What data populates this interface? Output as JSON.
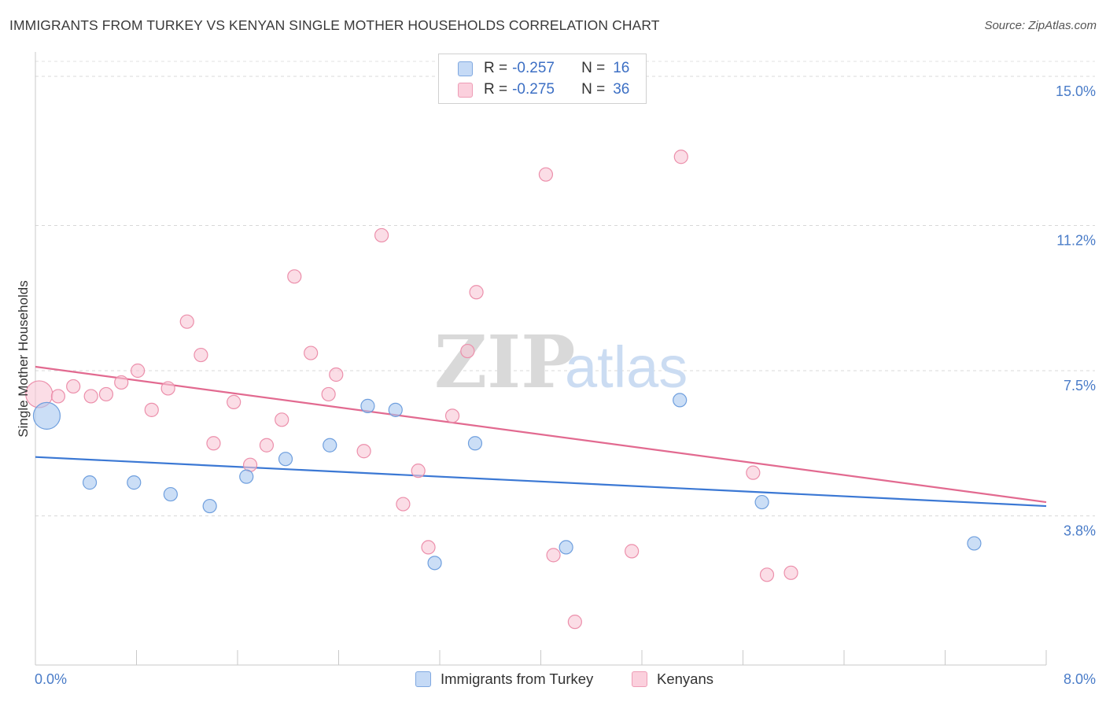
{
  "header": {
    "title": "IMMIGRANTS FROM TURKEY VS KENYAN SINGLE MOTHER HOUSEHOLDS CORRELATION CHART",
    "source": "Source: ZipAtlas.com"
  },
  "watermark": {
    "zip": "ZIP",
    "atlas": "atlas"
  },
  "legend_top": {
    "rows": [
      {
        "r_label": "R =",
        "r_value": "-0.257",
        "n_label": "N =",
        "n_value": "16",
        "color": "#a9c8f0"
      },
      {
        "r_label": "R =",
        "r_value": "-0.275",
        "n_label": "N =",
        "n_value": "36",
        "color": "#f7b8cb"
      }
    ]
  },
  "legend_bottom": {
    "turkey": "Immigrants from Turkey",
    "kenyans": "Kenyans"
  },
  "chart_data": {
    "type": "scatter",
    "title": "IMMIGRANTS FROM TURKEY VS KENYAN SINGLE MOTHER HOUSEHOLDS CORRELATION CHART",
    "xlabel": "",
    "ylabel": "Single Mother Households",
    "xlim": [
      0.0,
      8.0
    ],
    "ylim": [
      0.0,
      15.0
    ],
    "x_tick_labels": [
      "0.0%",
      "8.0%"
    ],
    "y_ticks": [
      3.8,
      7.5,
      11.2,
      15.0
    ],
    "y_tick_labels": [
      "3.8%",
      "7.5%",
      "11.2%",
      "15.0%"
    ],
    "grid": true,
    "series": [
      {
        "name": "Immigrants from Turkey",
        "color": "#a9c8f0",
        "stroke": "#6f9fde",
        "line_color": "#3b78d4",
        "trend": {
          "x": [
            0.0,
            8.0
          ],
          "y": [
            5.3,
            4.05
          ]
        },
        "points": [
          {
            "x": 0.09,
            "y": 6.35,
            "big": true
          },
          {
            "x": 0.43,
            "y": 4.65
          },
          {
            "x": 0.78,
            "y": 4.65
          },
          {
            "x": 1.07,
            "y": 4.35
          },
          {
            "x": 1.38,
            "y": 4.05
          },
          {
            "x": 1.67,
            "y": 4.8
          },
          {
            "x": 1.98,
            "y": 5.25
          },
          {
            "x": 2.33,
            "y": 5.6
          },
          {
            "x": 2.63,
            "y": 6.6
          },
          {
            "x": 2.85,
            "y": 6.5
          },
          {
            "x": 3.16,
            "y": 2.6
          },
          {
            "x": 3.48,
            "y": 5.65
          },
          {
            "x": 4.2,
            "y": 3.0
          },
          {
            "x": 5.1,
            "y": 6.75
          },
          {
            "x": 5.75,
            "y": 4.15
          },
          {
            "x": 7.43,
            "y": 3.1
          }
        ]
      },
      {
        "name": "Kenyans",
        "color": "#f9c6d5",
        "stroke": "#ec8fab",
        "line_color": "#e26a90",
        "trend": {
          "x": [
            0.0,
            8.0
          ],
          "y": [
            7.6,
            4.15
          ]
        },
        "points": [
          {
            "x": 0.03,
            "y": 6.9,
            "big": true
          },
          {
            "x": 0.18,
            "y": 6.85
          },
          {
            "x": 0.3,
            "y": 7.1
          },
          {
            "x": 0.44,
            "y": 6.85
          },
          {
            "x": 0.56,
            "y": 6.9
          },
          {
            "x": 0.68,
            "y": 7.2
          },
          {
            "x": 0.81,
            "y": 7.5
          },
          {
            "x": 0.92,
            "y": 6.5
          },
          {
            "x": 1.05,
            "y": 7.05
          },
          {
            "x": 1.2,
            "y": 8.75
          },
          {
            "x": 1.31,
            "y": 7.9
          },
          {
            "x": 1.41,
            "y": 5.65
          },
          {
            "x": 1.57,
            "y": 6.7
          },
          {
            "x": 1.7,
            "y": 5.1
          },
          {
            "x": 1.83,
            "y": 5.6
          },
          {
            "x": 1.95,
            "y": 6.25
          },
          {
            "x": 2.05,
            "y": 9.9
          },
          {
            "x": 2.18,
            "y": 7.95
          },
          {
            "x": 2.32,
            "y": 6.9
          },
          {
            "x": 2.38,
            "y": 7.4
          },
          {
            "x": 2.6,
            "y": 5.45
          },
          {
            "x": 2.74,
            "y": 10.95
          },
          {
            "x": 2.91,
            "y": 4.1
          },
          {
            "x": 3.03,
            "y": 4.95
          },
          {
            "x": 3.11,
            "y": 3.0
          },
          {
            "x": 3.3,
            "y": 6.35
          },
          {
            "x": 3.42,
            "y": 8.0
          },
          {
            "x": 3.49,
            "y": 9.5
          },
          {
            "x": 4.04,
            "y": 12.5
          },
          {
            "x": 4.1,
            "y": 2.8
          },
          {
            "x": 4.27,
            "y": 1.1
          },
          {
            "x": 4.72,
            "y": 2.9
          },
          {
            "x": 5.11,
            "y": 12.95
          },
          {
            "x": 5.68,
            "y": 4.9
          },
          {
            "x": 5.79,
            "y": 2.3
          },
          {
            "x": 5.98,
            "y": 2.35
          }
        ]
      }
    ]
  }
}
